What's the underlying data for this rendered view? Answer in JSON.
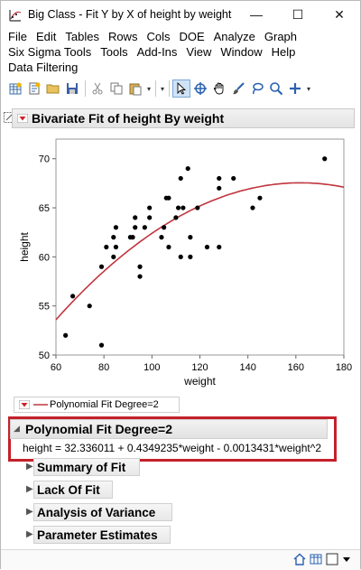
{
  "window": {
    "title": "Big Class - Fit Y by X of height by weight",
    "controls": {
      "minimize": "—",
      "maximize": "☐",
      "close": "✕"
    }
  },
  "menu": {
    "row1": [
      "File",
      "Edit",
      "Tables",
      "Rows",
      "Cols",
      "DOE",
      "Analyze",
      "Graph"
    ],
    "row2": [
      "Six Sigma Tools",
      "Tools",
      "Add-Ins",
      "View",
      "Window",
      "Help"
    ],
    "row3": [
      "Data Filtering"
    ]
  },
  "toolbar": {
    "icons": [
      "new-table-icon",
      "new-script-icon",
      "open-folder-icon",
      "save-icon",
      "cut-icon",
      "copy-icon",
      "paste-icon",
      "arrow-tool-icon",
      "crosshair-tool-icon",
      "grabber-tool-icon",
      "brush-tool-icon",
      "lasso-tool-icon",
      "magnifier-tool-icon",
      "plus-tool-icon"
    ]
  },
  "report": {
    "title": "Bivariate Fit of height By weight",
    "legend_label": "Polynomial Fit Degree=2",
    "poly_title": "Polynomial Fit Degree=2",
    "equation": "height = 32.336011 + 0.4349235*weight - 0.0013431*weight^2",
    "sections": [
      "Summary of Fit",
      "Lack Of Fit",
      "Analysis of Variance",
      "Parameter Estimates"
    ]
  },
  "colors": {
    "fit_line": "#c0353e",
    "highlight": "#c4202a",
    "outline_red": "#d21f26"
  },
  "chart_data": {
    "type": "scatter",
    "title": "",
    "xlabel": "weight",
    "ylabel": "height",
    "xlim": [
      60,
      180
    ],
    "ylim": [
      50,
      72
    ],
    "xticks": [
      60,
      80,
      100,
      120,
      140,
      160,
      180
    ],
    "yticks": [
      50,
      55,
      60,
      65,
      70
    ],
    "grid": false,
    "series": [
      {
        "name": "",
        "x": [
          64,
          67,
          74,
          79,
          79,
          81,
          84,
          84,
          85,
          85,
          91,
          92,
          93,
          93,
          95,
          95,
          97,
          99,
          99,
          104,
          105,
          106,
          107,
          107,
          110,
          111,
          112,
          112,
          113,
          115,
          116,
          116,
          119,
          123,
          128,
          128,
          128,
          134,
          142,
          145,
          172
        ],
        "y": [
          52,
          56,
          55,
          51,
          59,
          61,
          60,
          62,
          63,
          61,
          62,
          62,
          64,
          63,
          58,
          59,
          63,
          64,
          65,
          62,
          63,
          66,
          61,
          66,
          64,
          65,
          68,
          60,
          65,
          69,
          62,
          60,
          65,
          61,
          67,
          68,
          61,
          68,
          65,
          66,
          70
        ]
      }
    ],
    "fit": {
      "name": "Polynomial Fit Degree=2",
      "coefficients": [
        32.336011,
        0.4349235,
        -0.0013431
      ]
    }
  }
}
